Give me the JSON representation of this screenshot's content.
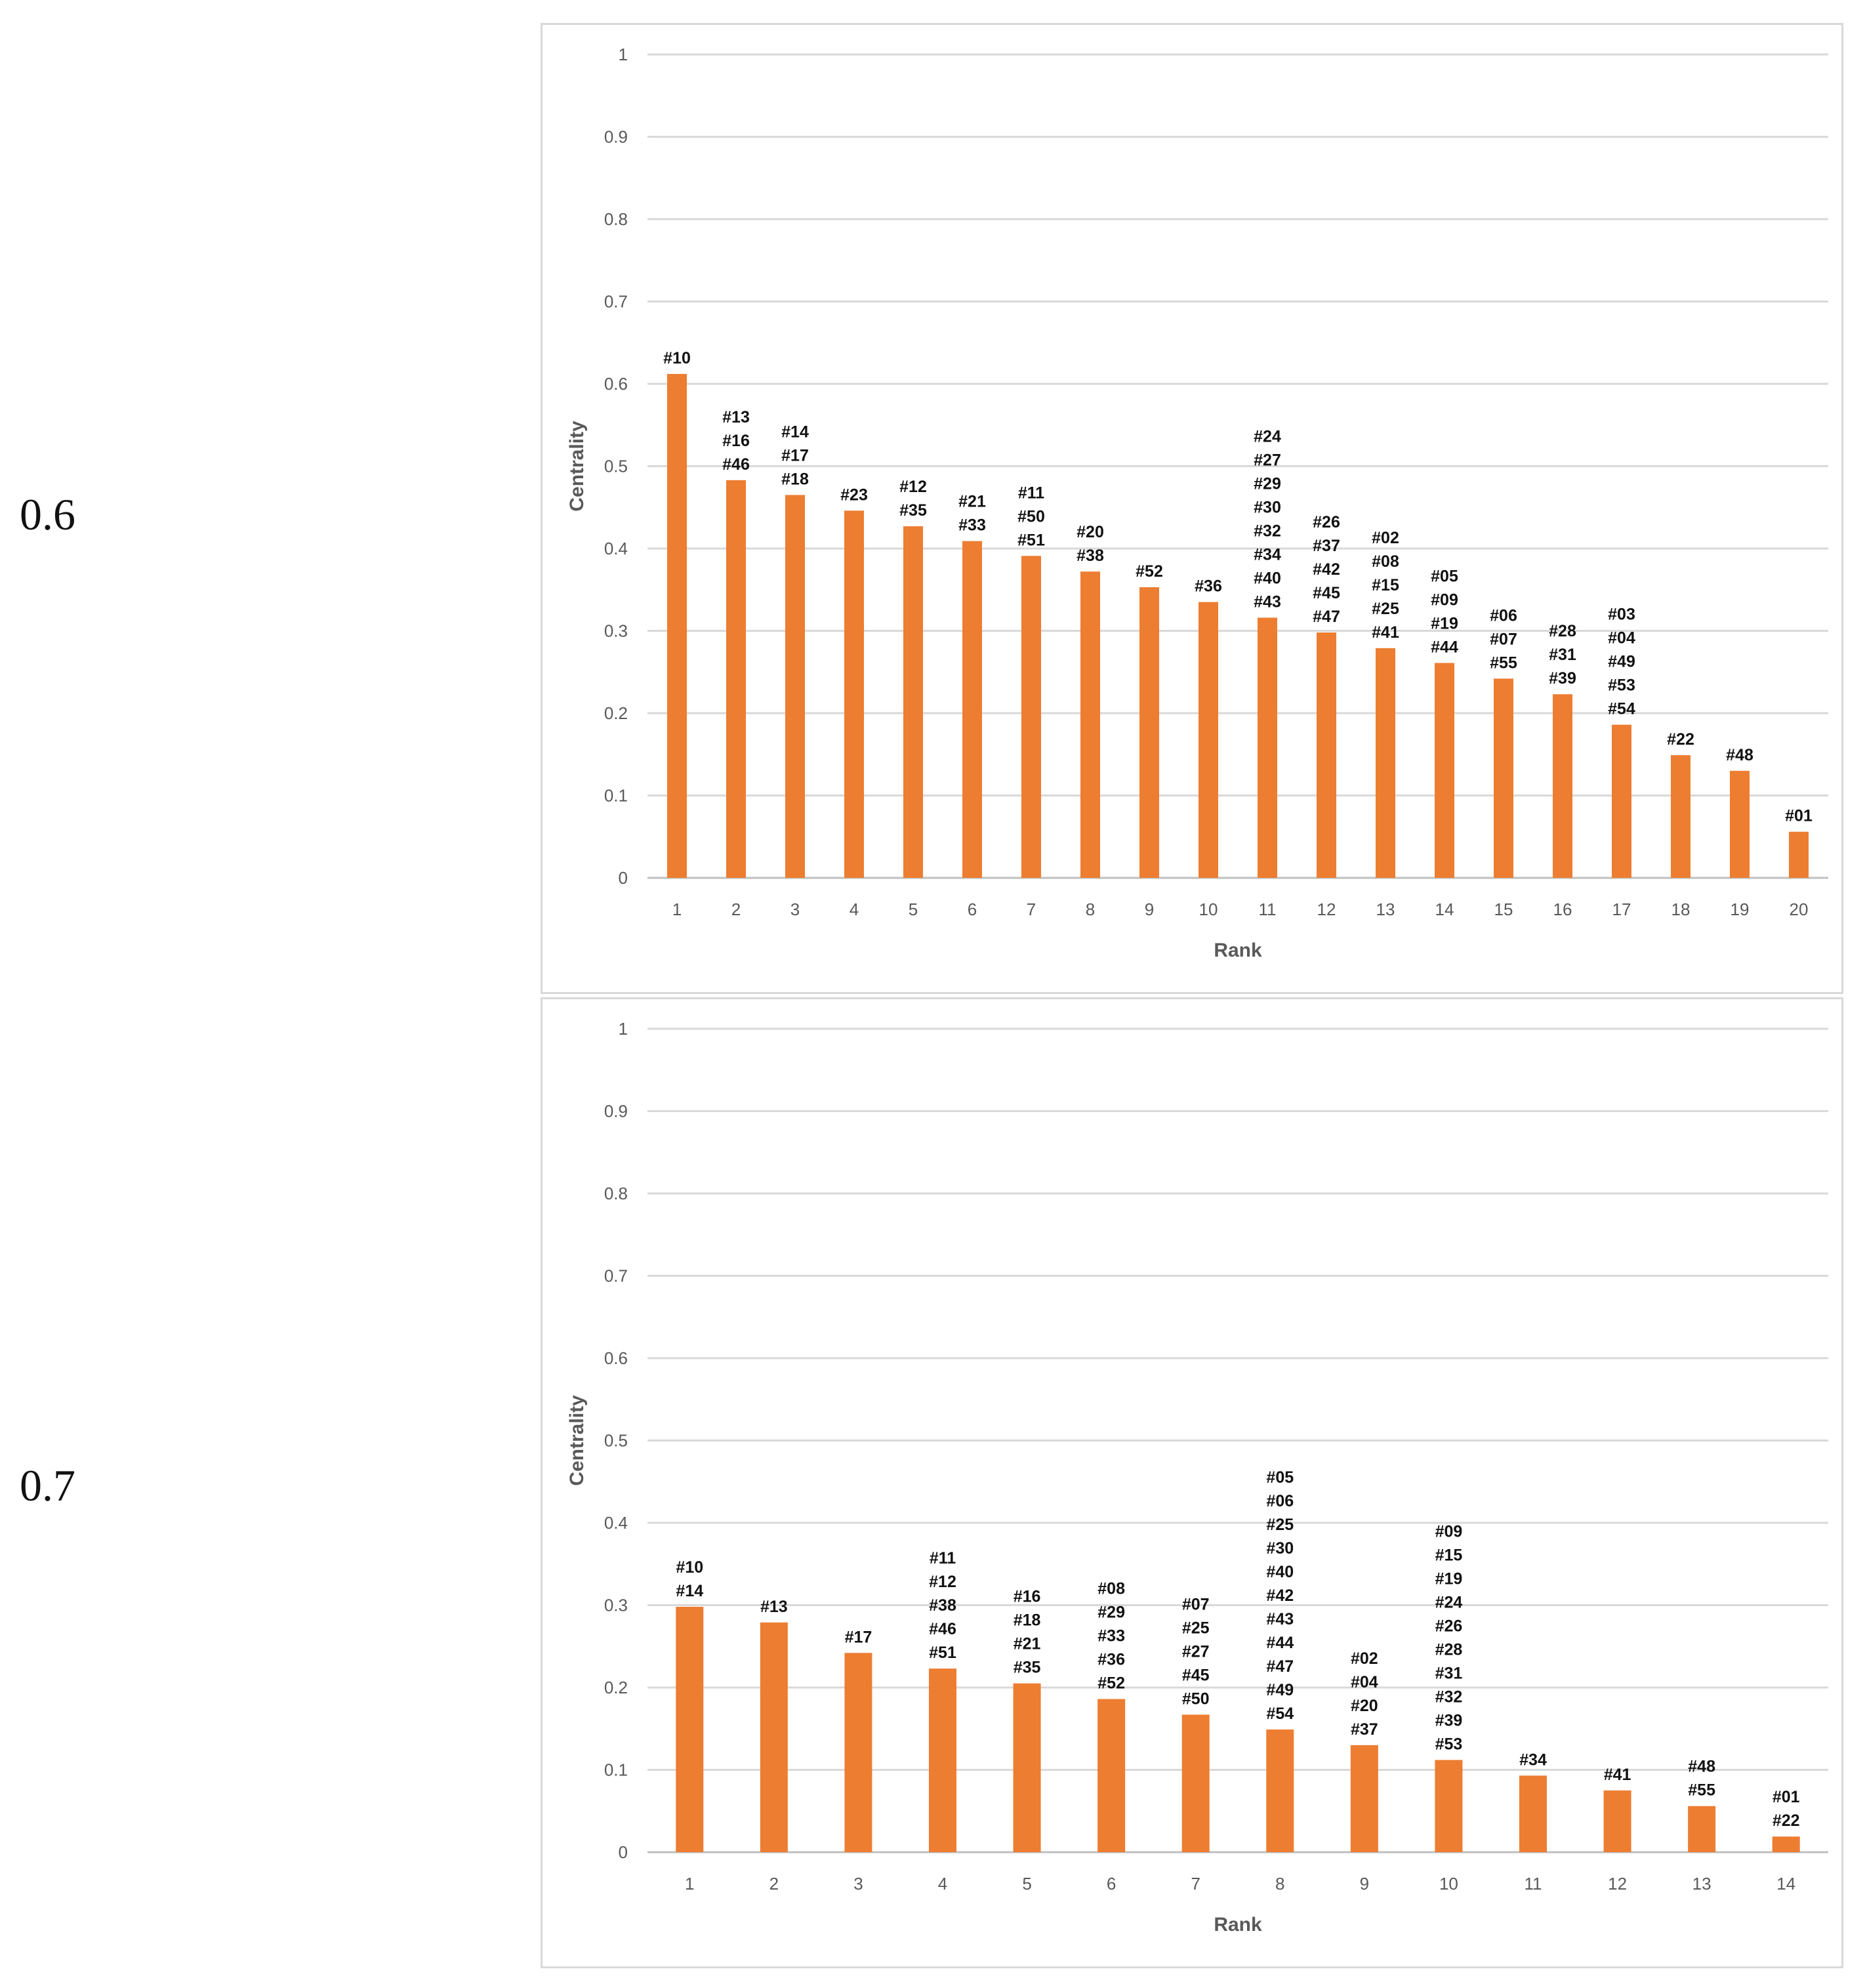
{
  "panels": [
    {
      "row_label": "0.6"
    },
    {
      "row_label": "0.7"
    }
  ],
  "chart_data": [
    {
      "type": "bar",
      "xlabel": "Rank",
      "ylabel": "Centrality",
      "ylim": [
        0,
        1
      ],
      "yticks": [
        "0",
        "0.1",
        "0.2",
        "0.3",
        "0.4",
        "0.5",
        "0.6",
        "0.7",
        "0.8",
        "0.9",
        "1"
      ],
      "grid": true,
      "bar_color": "#ed7d31",
      "categories": [
        "1",
        "2",
        "3",
        "4",
        "5",
        "6",
        "7",
        "8",
        "9",
        "10",
        "11",
        "12",
        "13",
        "14",
        "15",
        "16",
        "17",
        "18",
        "19",
        "20"
      ],
      "values": [
        0.612,
        0.483,
        0.465,
        0.446,
        0.427,
        0.409,
        0.391,
        0.372,
        0.353,
        0.335,
        0.316,
        0.298,
        0.279,
        0.261,
        0.242,
        0.223,
        0.186,
        0.149,
        0.13,
        0.056
      ],
      "labels": [
        [
          "#10"
        ],
        [
          "#13",
          "#16",
          "#46"
        ],
        [
          "#14",
          "#17",
          "#18"
        ],
        [
          "#23"
        ],
        [
          "#12",
          "#35"
        ],
        [
          "#21",
          "#33"
        ],
        [
          "#11",
          "#50",
          "#51"
        ],
        [
          "#20",
          "#38"
        ],
        [
          "#52"
        ],
        [
          "#36"
        ],
        [
          "#24",
          "#27",
          "#29",
          "#30",
          "#32",
          "#34",
          "#40",
          "#43"
        ],
        [
          "#26",
          "#37",
          "#42",
          "#45",
          "#47"
        ],
        [
          "#02",
          "#08",
          "#15",
          "#25",
          "#41"
        ],
        [
          "#05",
          "#09",
          "#19",
          "#44"
        ],
        [
          "#06",
          "#07",
          "#55"
        ],
        [
          "#28",
          "#31",
          "#39"
        ],
        [
          "#03",
          "#04",
          "#49",
          "#53",
          "#54"
        ],
        [
          "#22"
        ],
        [
          "#48"
        ],
        [
          "#01"
        ]
      ]
    },
    {
      "type": "bar",
      "xlabel": "Rank",
      "ylabel": "Centrality",
      "ylim": [
        0,
        1
      ],
      "yticks": [
        "0",
        "0.1",
        "0.2",
        "0.3",
        "0.4",
        "0.5",
        "0.6",
        "0.7",
        "0.8",
        "0.9",
        "1"
      ],
      "grid": true,
      "bar_color": "#ed7d31",
      "categories": [
        "1",
        "2",
        "3",
        "4",
        "5",
        "6",
        "7",
        "8",
        "9",
        "10",
        "11",
        "12",
        "13",
        "14"
      ],
      "values": [
        0.298,
        0.279,
        0.242,
        0.223,
        0.205,
        0.186,
        0.167,
        0.149,
        0.13,
        0.112,
        0.093,
        0.075,
        0.056,
        0.019
      ],
      "labels": [
        [
          "#10",
          "#14"
        ],
        [
          "#13"
        ],
        [
          "#17"
        ],
        [
          "#11",
          "#12",
          "#38",
          "#46",
          "#51"
        ],
        [
          "#16",
          "#18",
          "#21",
          "#35"
        ],
        [
          "#08",
          "#29",
          "#33",
          "#36",
          "#52"
        ],
        [
          "#07",
          "#25",
          "#27",
          "#45",
          "#50"
        ],
        [
          "#05",
          "#06",
          "#25",
          "#30",
          "#40",
          "#42",
          "#43",
          "#44",
          "#47",
          "#49",
          "#54"
        ],
        [
          "#02",
          "#04",
          "#20",
          "#37"
        ],
        [
          "#09",
          "#15",
          "#19",
          "#24",
          "#26",
          "#28",
          "#31",
          "#32",
          "#39",
          "#53"
        ],
        [
          "#34"
        ],
        [
          "#41"
        ],
        [
          "#48",
          "#55"
        ],
        [
          "#01",
          "#22"
        ]
      ]
    }
  ]
}
